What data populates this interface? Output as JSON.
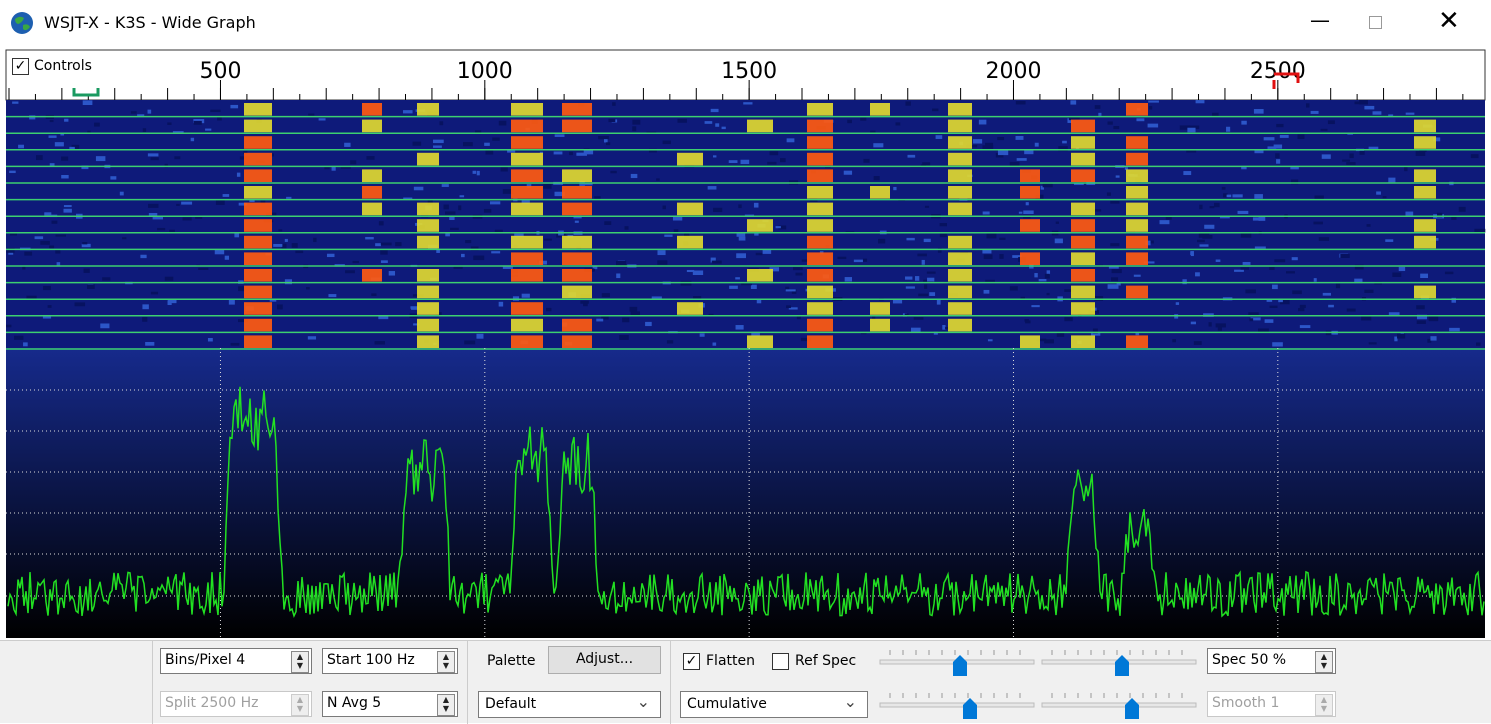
{
  "window": {
    "title": "WSJT-X - K3S - Wide Graph"
  },
  "header": {
    "controls_label": "Controls",
    "controls_checked": true
  },
  "frequency_axis": {
    "lim": [
      100,
      2890
    ],
    "ticks": [
      500,
      1000,
      1500,
      2000,
      2500
    ]
  },
  "controls": {
    "bins_pixel": "Bins/Pixel  4",
    "start": "Start 100 Hz",
    "split": "Split  2500  Hz",
    "n_avg": "N Avg 5",
    "palette_label": "Palette",
    "adjust_button": "Adjust...",
    "palette_value": "Default",
    "flatten": "Flatten",
    "flatten_checked": true,
    "ref_spec": "Ref Spec",
    "ref_spec_checked": false,
    "spectrum_mode": "Cumulative",
    "spec": "Spec 50 %",
    "smooth": "Smooth  1"
  }
}
